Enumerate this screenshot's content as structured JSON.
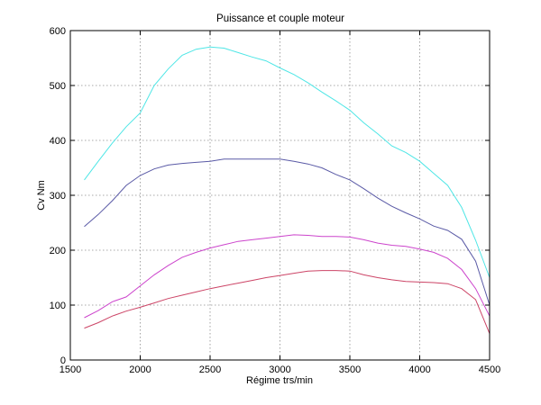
{
  "chart_data": {
    "type": "line",
    "title": "Puissance et couple moteur",
    "xlabel": "Régime trs/min",
    "ylabel": "Cv Nm",
    "xlim": [
      1500,
      4500
    ],
    "ylim": [
      0,
      600
    ],
    "xticks": [
      1500,
      2000,
      2500,
      3000,
      3500,
      4000,
      4500
    ],
    "yticks": [
      0,
      100,
      200,
      300,
      400,
      500,
      600
    ],
    "grid": true,
    "series": [
      {
        "color": "#4ee6e6",
        "x": [
          1600,
          1700,
          1800,
          1900,
          2000,
          2100,
          2200,
          2300,
          2400,
          2500,
          2600,
          2700,
          2800,
          2900,
          3000,
          3100,
          3200,
          3300,
          3400,
          3500,
          3600,
          3700,
          3800,
          3900,
          4000,
          4100,
          4200,
          4300,
          4400,
          4500
        ],
        "y": [
          328,
          362,
          395,
          425,
          450,
          500,
          530,
          555,
          566,
          570,
          568,
          560,
          552,
          545,
          532,
          520,
          505,
          488,
          472,
          455,
          432,
          412,
          390,
          378,
          362,
          340,
          318,
          278,
          218,
          150
        ]
      },
      {
        "color": "#5a5aa6",
        "x": [
          1600,
          1700,
          1800,
          1900,
          2000,
          2100,
          2200,
          2300,
          2400,
          2500,
          2600,
          2700,
          2800,
          2900,
          3000,
          3100,
          3200,
          3300,
          3400,
          3500,
          3600,
          3700,
          3800,
          3900,
          4000,
          4100,
          4200,
          4300,
          4400,
          4500
        ],
        "y": [
          243,
          265,
          290,
          318,
          336,
          348,
          355,
          358,
          360,
          362,
          366,
          366,
          366,
          366,
          366,
          362,
          357,
          350,
          338,
          328,
          312,
          295,
          280,
          268,
          257,
          244,
          236,
          220,
          180,
          100
        ]
      },
      {
        "color": "#cc44cc",
        "x": [
          1600,
          1700,
          1800,
          1900,
          2000,
          2100,
          2200,
          2300,
          2400,
          2500,
          2600,
          2700,
          2800,
          2900,
          3000,
          3100,
          3200,
          3300,
          3400,
          3500,
          3600,
          3700,
          3800,
          3900,
          4000,
          4100,
          4200,
          4300,
          4400,
          4500
        ],
        "y": [
          77,
          90,
          106,
          115,
          135,
          155,
          172,
          187,
          196,
          204,
          210,
          216,
          219,
          222,
          225,
          228,
          227,
          225,
          225,
          224,
          219,
          213,
          209,
          207,
          202,
          196,
          185,
          165,
          130,
          80
        ]
      },
      {
        "color": "#cc4466",
        "x": [
          1600,
          1700,
          1800,
          1900,
          2000,
          2100,
          2200,
          2300,
          2400,
          2500,
          2600,
          2700,
          2800,
          2900,
          3000,
          3100,
          3200,
          3300,
          3400,
          3500,
          3600,
          3700,
          3800,
          3900,
          4000,
          4100,
          4200,
          4300,
          4400,
          4500
        ],
        "y": [
          58,
          68,
          80,
          89,
          96,
          104,
          112,
          118,
          124,
          130,
          135,
          140,
          145,
          150,
          154,
          158,
          162,
          163,
          163,
          162,
          155,
          150,
          146,
          143,
          142,
          141,
          139,
          130,
          110,
          48
        ]
      }
    ]
  }
}
